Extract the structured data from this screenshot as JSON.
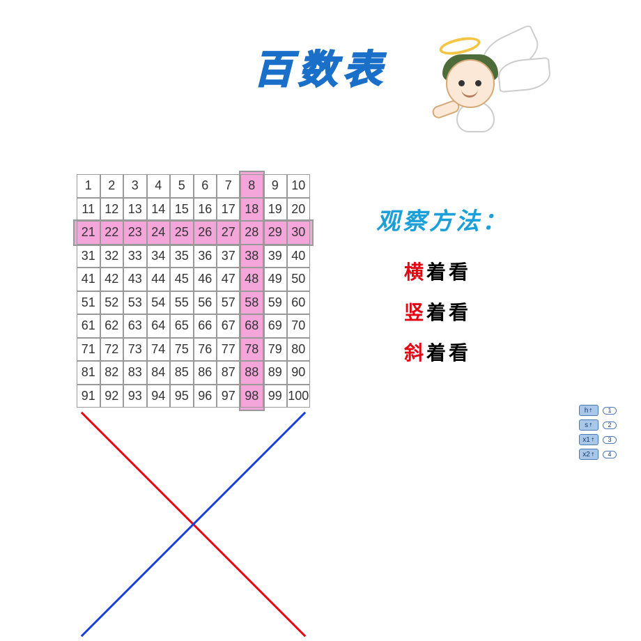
{
  "title": "百数表",
  "grid": {
    "rows": 10,
    "cols": 10,
    "cell_font_size": 18,
    "cell_text_color": "#333333",
    "border_color": "#999999",
    "highlight": {
      "row_index": 2,
      "col_index": 7,
      "color": "#f4a6db"
    },
    "diagonals": [
      {
        "from": [
          0,
          0
        ],
        "to": [
          9,
          9
        ],
        "color": "#e30613",
        "width": 3
      },
      {
        "from": [
          0,
          9
        ],
        "to": [
          9,
          0
        ],
        "color": "#1a3fd9",
        "width": 3
      }
    ]
  },
  "methods": {
    "title": "观察方法：",
    "title_color": "#1a9fd9",
    "items": [
      {
        "accent": "横",
        "rest": "着看"
      },
      {
        "accent": "竖",
        "rest": "着看"
      },
      {
        "accent": "斜",
        "rest": "着看"
      }
    ],
    "accent_color": "#e30613"
  },
  "nav": {
    "buttons": [
      "h",
      "s",
      "x1",
      "x2"
    ],
    "pills": [
      "1",
      "2",
      "3",
      "4"
    ]
  },
  "colors": {
    "title_color": "#1a6fc9",
    "background": "#ffffff"
  }
}
